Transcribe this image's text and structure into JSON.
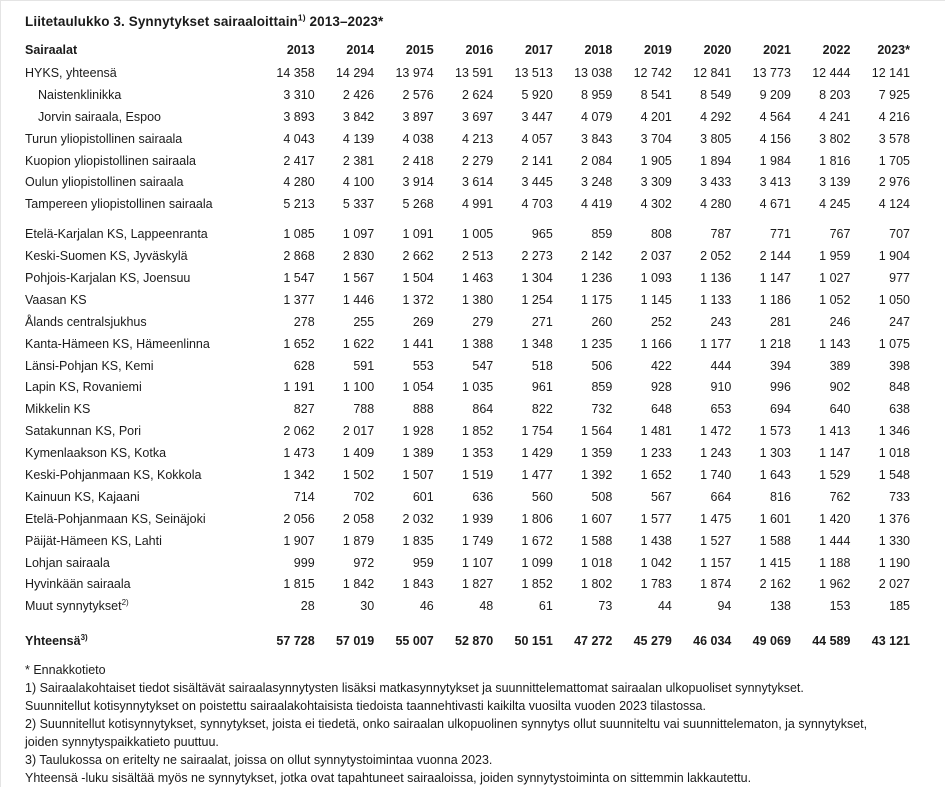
{
  "title": {
    "text": "Liitetaulukko 3. Synnytykset sairaaloittain",
    "superscript": "1)",
    "suffix": " 2013–2023*"
  },
  "table": {
    "row_header": "Sairaalat",
    "years": [
      "2013",
      "2014",
      "2015",
      "2016",
      "2017",
      "2018",
      "2019",
      "2020",
      "2021",
      "2022",
      "2023*"
    ],
    "rows": [
      {
        "label": "HYKS, yhteensä",
        "indent": false,
        "values": [
          "14 358",
          "14 294",
          "13 974",
          "13 591",
          "13 513",
          "13 038",
          "12 742",
          "12 841",
          "13 773",
          "12 444",
          "12 141"
        ]
      },
      {
        "label": "Naistenklinikka",
        "indent": true,
        "values": [
          "3 310",
          "2 426",
          "2 576",
          "2 624",
          "5 920",
          "8 959",
          "8 541",
          "8 549",
          "9 209",
          "8 203",
          "7 925"
        ]
      },
      {
        "label": "Jorvin sairaala, Espoo",
        "indent": true,
        "values": [
          "3 893",
          "3 842",
          "3 897",
          "3 697",
          "3 447",
          "4 079",
          "4 201",
          "4 292",
          "4 564",
          "4 241",
          "4 216"
        ]
      },
      {
        "label": "Turun yliopistollinen sairaala",
        "indent": false,
        "values": [
          "4 043",
          "4 139",
          "4 038",
          "4 213",
          "4 057",
          "3 843",
          "3 704",
          "3 805",
          "4 156",
          "3 802",
          "3 578"
        ]
      },
      {
        "label": "Kuopion yliopistollinen sairaala",
        "indent": false,
        "values": [
          "2 417",
          "2 381",
          "2 418",
          "2 279",
          "2 141",
          "2 084",
          "1 905",
          "1 894",
          "1 984",
          "1 816",
          "1 705"
        ]
      },
      {
        "label": "Oulun yliopistollinen sairaala",
        "indent": false,
        "values": [
          "4 280",
          "4 100",
          "3 914",
          "3 614",
          "3 445",
          "3 248",
          "3 309",
          "3 433",
          "3 413",
          "3 139",
          "2 976"
        ]
      },
      {
        "label": "Tampereen yliopistollinen sairaala",
        "indent": false,
        "gap_after": true,
        "values": [
          "5 213",
          "5 337",
          "5 268",
          "4 991",
          "4 703",
          "4 419",
          "4 302",
          "4 280",
          "4 671",
          "4 245",
          "4 124"
        ]
      },
      {
        "label": "Etelä-Karjalan KS, Lappeenranta",
        "indent": false,
        "values": [
          "1 085",
          "1 097",
          "1 091",
          "1 005",
          "965",
          "859",
          "808",
          "787",
          "771",
          "767",
          "707"
        ]
      },
      {
        "label": "Keski-Suomen KS, Jyväskylä",
        "indent": false,
        "values": [
          "2 868",
          "2 830",
          "2 662",
          "2 513",
          "2 273",
          "2 142",
          "2 037",
          "2 052",
          "2 144",
          "1 959",
          "1 904"
        ]
      },
      {
        "label": "Pohjois-Karjalan KS, Joensuu",
        "indent": false,
        "values": [
          "1 547",
          "1 567",
          "1 504",
          "1 463",
          "1 304",
          "1 236",
          "1 093",
          "1 136",
          "1 147",
          "1 027",
          "977"
        ]
      },
      {
        "label": "Vaasan KS",
        "indent": false,
        "values": [
          "1 377",
          "1 446",
          "1 372",
          "1 380",
          "1 254",
          "1 175",
          "1 145",
          "1 133",
          "1 186",
          "1 052",
          "1 050"
        ]
      },
      {
        "label": "Ålands centralsjukhus",
        "indent": false,
        "values": [
          "278",
          "255",
          "269",
          "279",
          "271",
          "260",
          "252",
          "243",
          "281",
          "246",
          "247"
        ]
      },
      {
        "label": "Kanta-Hämeen KS, Hämeenlinna",
        "indent": false,
        "values": [
          "1 652",
          "1 622",
          "1 441",
          "1 388",
          "1 348",
          "1 235",
          "1 166",
          "1 177",
          "1 218",
          "1 143",
          "1 075"
        ]
      },
      {
        "label": "Länsi-Pohjan KS, Kemi",
        "indent": false,
        "values": [
          "628",
          "591",
          "553",
          "547",
          "518",
          "506",
          "422",
          "444",
          "394",
          "389",
          "398"
        ]
      },
      {
        "label": "Lapin KS, Rovaniemi",
        "indent": false,
        "values": [
          "1 191",
          "1 100",
          "1 054",
          "1 035",
          "961",
          "859",
          "928",
          "910",
          "996",
          "902",
          "848"
        ]
      },
      {
        "label": "Mikkelin KS",
        "indent": false,
        "values": [
          "827",
          "788",
          "888",
          "864",
          "822",
          "732",
          "648",
          "653",
          "694",
          "640",
          "638"
        ]
      },
      {
        "label": "Satakunnan KS, Pori",
        "indent": false,
        "values": [
          "2 062",
          "2 017",
          "1 928",
          "1 852",
          "1 754",
          "1 564",
          "1 481",
          "1 472",
          "1 573",
          "1 413",
          "1 346"
        ]
      },
      {
        "label": "Kymenlaakson KS, Kotka",
        "indent": false,
        "values": [
          "1 473",
          "1 409",
          "1 389",
          "1 353",
          "1 429",
          "1 359",
          "1 233",
          "1 243",
          "1 303",
          "1 147",
          "1 018"
        ]
      },
      {
        "label": "Keski-Pohjanmaan KS, Kokkola",
        "indent": false,
        "values": [
          "1 342",
          "1 502",
          "1 507",
          "1 519",
          "1 477",
          "1 392",
          "1 652",
          "1 740",
          "1 643",
          "1 529",
          "1 548"
        ]
      },
      {
        "label": "Kainuun KS, Kajaani",
        "indent": false,
        "values": [
          "714",
          "702",
          "601",
          "636",
          "560",
          "508",
          "567",
          "664",
          "816",
          "762",
          "733"
        ]
      },
      {
        "label": "Etelä-Pohjanmaan KS, Seinäjoki",
        "indent": false,
        "values": [
          "2 056",
          "2 058",
          "2 032",
          "1 939",
          "1 806",
          "1 607",
          "1 577",
          "1 475",
          "1 601",
          "1 420",
          "1 376"
        ]
      },
      {
        "label": "Päijät-Hämeen KS, Lahti",
        "indent": false,
        "values": [
          "1 907",
          "1 879",
          "1 835",
          "1 749",
          "1 672",
          "1 588",
          "1 438",
          "1 527",
          "1 588",
          "1 444",
          "1 330"
        ]
      },
      {
        "label": "Lohjan sairaala",
        "indent": false,
        "values": [
          "999",
          "972",
          "959",
          "1 107",
          "1 099",
          "1 018",
          "1 042",
          "1 157",
          "1 415",
          "1 188",
          "1 190"
        ]
      },
      {
        "label": "Hyvinkään sairaala",
        "indent": false,
        "values": [
          "1 815",
          "1 842",
          "1 843",
          "1 827",
          "1 852",
          "1 802",
          "1 783",
          "1 874",
          "2 162",
          "1 962",
          "2 027"
        ]
      },
      {
        "label": "Muut synnytykset",
        "superscript": "2)",
        "indent": false,
        "values": [
          "28",
          "30",
          "46",
          "48",
          "61",
          "73",
          "44",
          "94",
          "138",
          "153",
          "185"
        ]
      }
    ],
    "total_row": {
      "label": "Yhteensä",
      "superscript": "3)",
      "values": [
        "57 728",
        "57 019",
        "55 007",
        "52 870",
        "50 151",
        "47 272",
        "45 279",
        "46 034",
        "49 069",
        "44 589",
        "43 121"
      ]
    }
  },
  "footnotes": [
    "* Ennakkotieto",
    "1) Sairaalakohtaiset tiedot sisältävät sairaalasynnytysten lisäksi matkasynnytykset ja suunnittelemattomat sairaalan ulkopuoliset synnytykset.",
    "Suunnitellut kotisynnytykset on poistettu sairaalakohtaisista tiedoista taannehtivasti kaikilta vuosilta vuoden 2023 tilastossa.",
    "2) Suunnitellut kotisynnytykset, synnytykset, joista ei tiedetä, onko sairaalan ulkopuolinen synnytys ollut suunniteltu vai suunnittelematon, ja synnytykset,",
    "joiden synnytyspaikkatieto puuttuu.",
    "3) Taulukossa on eritelty ne sairaalat, joissa on ollut synnytystoimintaa vuonna 2023.",
    "Yhteensä -luku sisältää myös ne synnytykset, jotka ovat tapahtuneet sairaaloissa, joiden synnytystoiminta on sittemmin lakkautettu."
  ]
}
